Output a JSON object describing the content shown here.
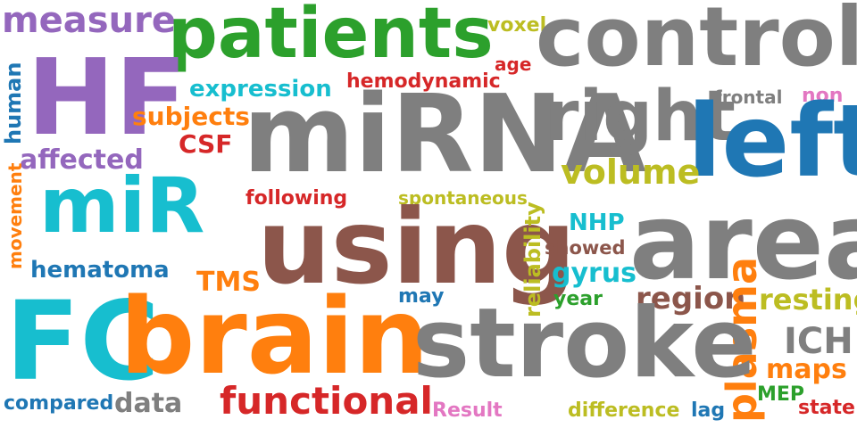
{
  "colors": {
    "purple": "#9467bd",
    "green": "#2ca02c",
    "gray": "#7f7f7f",
    "blue": "#1f77b4",
    "cyan": "#17becf",
    "orange": "#ff7f0e",
    "red": "#d62728",
    "brown": "#8c564b",
    "olive": "#bcbd22",
    "pink": "#e377c2"
  },
  "words": {
    "measure": "measure",
    "patients": "patients",
    "voxel": "voxel",
    "control": "control",
    "age": "age",
    "hf": "HF",
    "expression": "expression",
    "hemodynamic": "hemodynamic",
    "frontal": "frontal",
    "non": "non",
    "human": "human",
    "subjects": "subjects",
    "mirna": "miRNA",
    "right": "right",
    "left": "left",
    "csf": "CSF",
    "affected": "affected",
    "volume": "volume",
    "mir": "miR",
    "following": "following",
    "spontaneous": "spontaneous",
    "movement": "movement",
    "using": "using",
    "reliability": "reliability",
    "nhp": "NHP",
    "area": "area",
    "showed": "showed",
    "hematoma": "hematoma",
    "gyrus": "gyrus",
    "tms": "TMS",
    "may": "may",
    "year": "year",
    "region": "region",
    "resting": "resting",
    "plasma": "plasma",
    "fc": "FC",
    "brain": "brain",
    "stroke": "stroke",
    "ich": "ICH",
    "maps": "maps",
    "compared": "compared",
    "data": "data",
    "functional": "functional",
    "mep": "MEP",
    "result": "Result",
    "difference": "difference",
    "lag": "lag",
    "state": "state"
  }
}
